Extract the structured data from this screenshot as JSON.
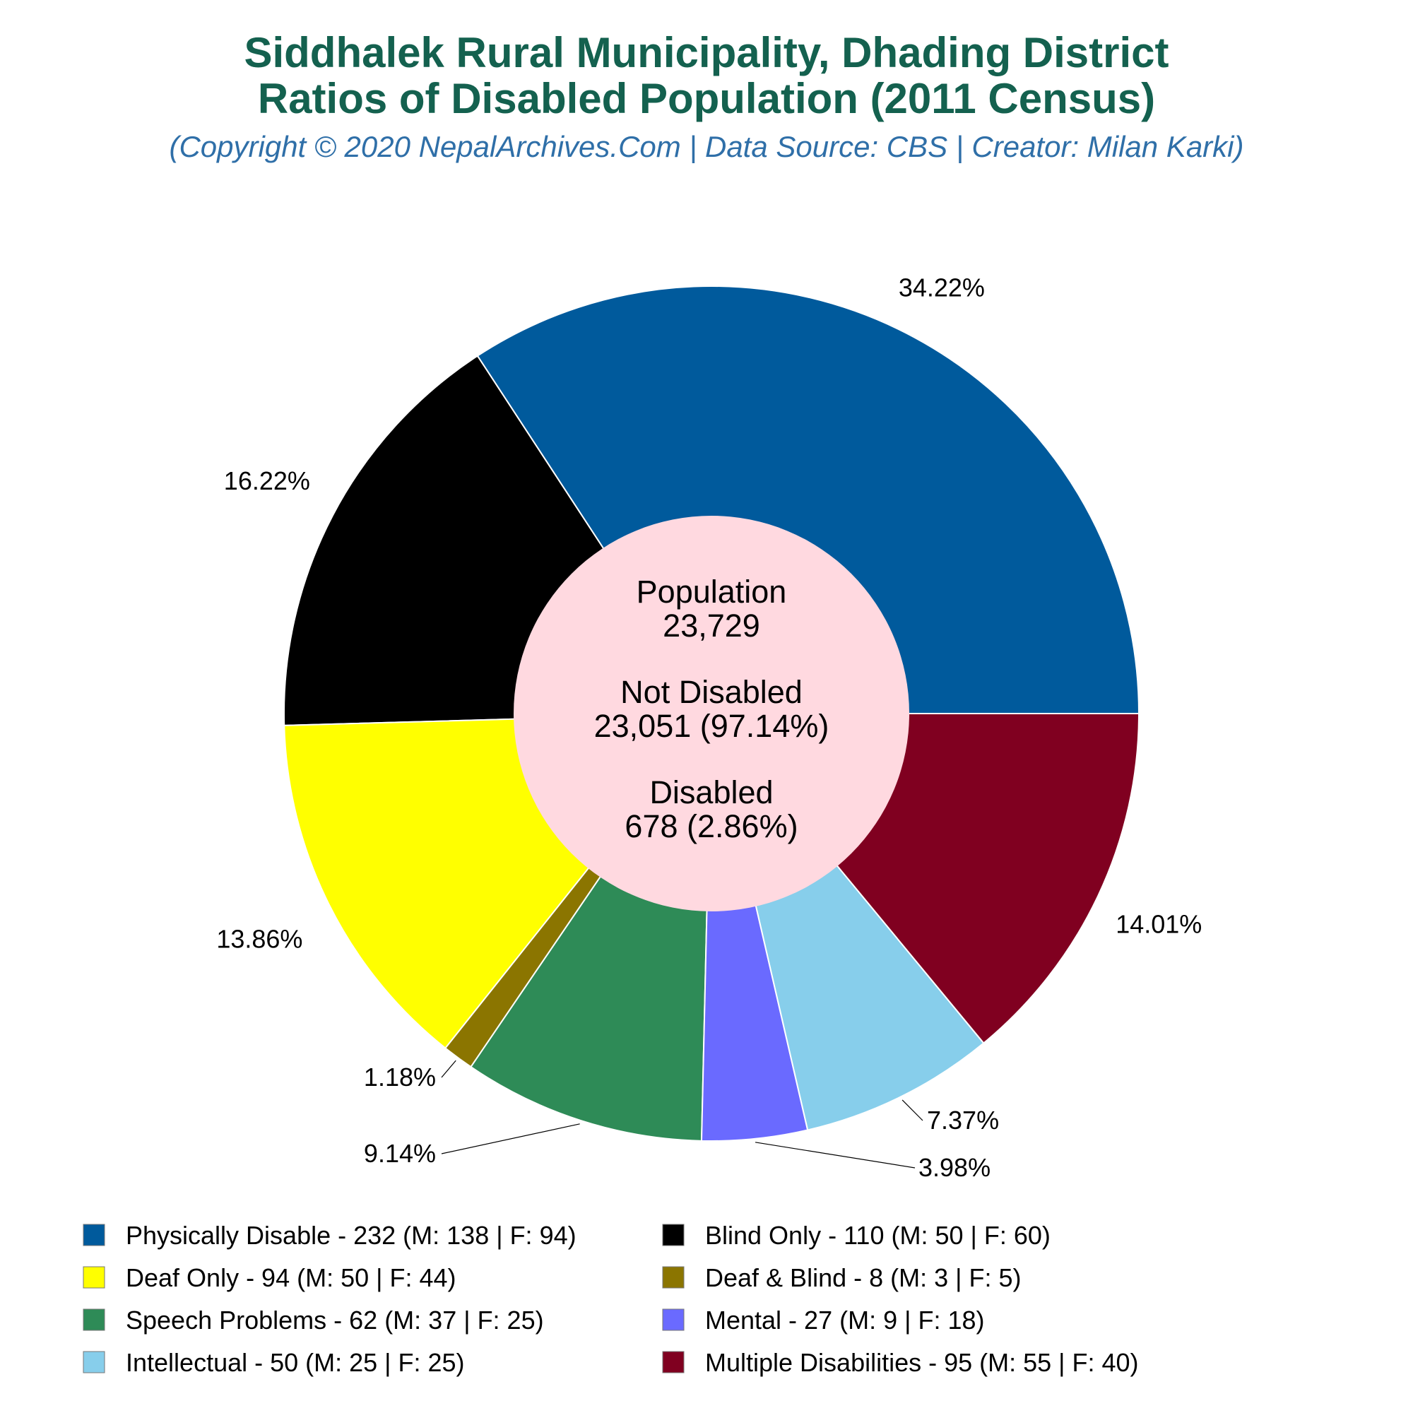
{
  "chart_data": {
    "type": "pie",
    "title_line1": "Siddhalek Rural Municipality, Dhading District",
    "title_line2": "Ratios of Disabled Population (2011 Census)",
    "subtitle": "(Copyright © 2020 NepalArchives.Com | Data Source: CBS | Creator: Milan Karki)",
    "center": {
      "population_label": "Population",
      "population_value": "23,729",
      "not_disabled_label": "Not Disabled",
      "not_disabled_value": "23,051 (97.14%)",
      "disabled_label": "Disabled",
      "disabled_value": "678 (2.86%)"
    },
    "slices": [
      {
        "name": "Physically Disable",
        "value": 232,
        "male": 138,
        "female": 94,
        "percent_label": "34.22%",
        "color": "#005a9c",
        "legend": "Physically Disable - 232 (M: 138 | F: 94)"
      },
      {
        "name": "Blind Only",
        "value": 110,
        "male": 50,
        "female": 60,
        "percent_label": "16.22%",
        "color": "#000000",
        "legend": "Blind Only - 110 (M: 50 | F: 60)"
      },
      {
        "name": "Deaf Only",
        "value": 94,
        "male": 50,
        "female": 44,
        "percent_label": "13.86%",
        "color": "#ffff00",
        "legend": "Deaf Only - 94 (M: 50 | F: 44)"
      },
      {
        "name": "Deaf & Blind",
        "value": 8,
        "male": 3,
        "female": 5,
        "percent_label": "1.18%",
        "color": "#8b7500",
        "legend": "Deaf & Blind - 8 (M: 3 | F: 5)"
      },
      {
        "name": "Speech Problems",
        "value": 62,
        "male": 37,
        "female": 25,
        "percent_label": "9.14%",
        "color": "#2e8b57",
        "legend": "Speech Problems - 62 (M: 37 | F: 25)"
      },
      {
        "name": "Mental",
        "value": 27,
        "male": 9,
        "female": 18,
        "percent_label": "3.98%",
        "color": "#6a6aff",
        "legend": "Mental - 27 (M: 9 | F: 18)"
      },
      {
        "name": "Intellectual",
        "value": 50,
        "male": 25,
        "female": 25,
        "percent_label": "7.37%",
        "color": "#87ceeb",
        "legend": "Intellectual - 50 (M: 25 | F: 25)"
      },
      {
        "name": "Multiple Disabilities",
        "value": 95,
        "male": 55,
        "female": 40,
        "percent_label": "14.01%",
        "color": "#800020",
        "legend": "Multiple Disabilities - 95 (M: 55 | F: 40)"
      }
    ],
    "center_color": "#ffd9e0"
  }
}
